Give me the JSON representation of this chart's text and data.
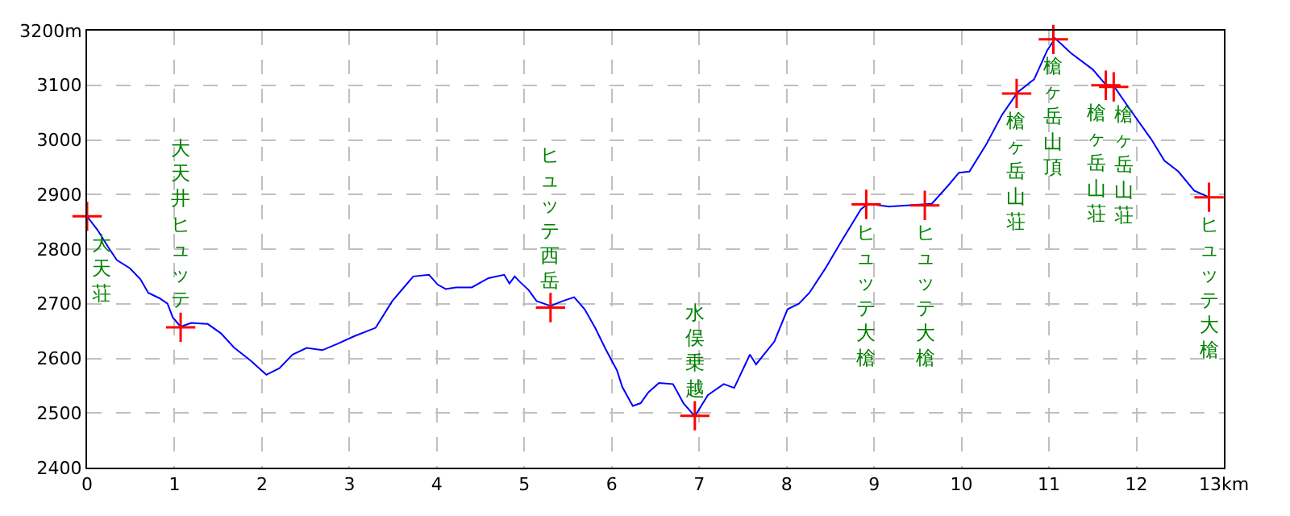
{
  "chart_data": {
    "type": "line",
    "x": [
      0,
      0.12,
      0.24,
      0.34,
      0.49,
      0.61,
      0.7,
      0.83,
      0.92,
      0.98,
      1.07,
      1.19,
      1.38,
      1.53,
      1.68,
      1.87,
      2.05,
      2.2,
      2.35,
      2.51,
      2.69,
      2.87,
      3.06,
      3.3,
      3.49,
      3.73,
      3.91,
      4.01,
      4.1,
      4.22,
      4.4,
      4.59,
      4.77,
      4.83,
      4.89,
      4.95,
      5.05,
      5.14,
      5.3,
      5.44,
      5.57,
      5.69,
      5.81,
      5.93,
      6.06,
      6.12,
      6.24,
      6.33,
      6.42,
      6.54,
      6.7,
      6.82,
      6.95,
      7.1,
      7.28,
      7.4,
      7.58,
      7.65,
      7.86,
      8.01,
      8.14,
      8.26,
      8.44,
      8.64,
      8.85,
      8.93,
      9.17,
      9.66,
      9.85,
      9.97,
      10.09,
      10.28,
      10.46,
      10.64,
      10.83,
      10.98,
      11.07,
      11.25,
      11.5,
      11.65,
      11.74,
      11.93,
      12.17,
      12.32,
      12.48,
      12.66,
      12.83
    ],
    "series": [
      {
        "color": "#0000ff",
        "marker": "none",
        "values": [
          2860,
          2835,
          2804,
          2780,
          2765,
          2745,
          2720,
          2710,
          2700,
          2675,
          2658,
          2665,
          2663,
          2646,
          2620,
          2596,
          2570,
          2582,
          2607,
          2619,
          2615,
          2627,
          2641,
          2656,
          2705,
          2750,
          2753,
          2735,
          2727,
          2730,
          2730,
          2747,
          2753,
          2737,
          2750,
          2740,
          2725,
          2705,
          2696,
          2705,
          2712,
          2690,
          2656,
          2617,
          2578,
          2548,
          2513,
          2518,
          2538,
          2555,
          2553,
          2518,
          2494,
          2533,
          2553,
          2546,
          2607,
          2589,
          2631,
          2690,
          2700,
          2720,
          2764,
          2818,
          2873,
          2883,
          2878,
          2883,
          2917,
          2940,
          2942,
          2991,
          3045,
          3087,
          3111,
          3164,
          3186,
          3159,
          3129,
          3101,
          3099,
          3055,
          3001,
          2962,
          2942,
          2907,
          2895
        ]
      },
      {
        "type": "scatter",
        "color": "#ff0000",
        "marker": "cross",
        "x": [
          0,
          1.07,
          5.3,
          6.95,
          8.91,
          9.58,
          10.63,
          11.05,
          11.65,
          11.74,
          12.83
        ],
        "values": [
          2860,
          2657,
          2693,
          2495,
          2882,
          2880,
          3085,
          3184,
          3100,
          3097,
          2895
        ]
      }
    ],
    "annotations": [
      {
        "text": "大天荘",
        "x": 0,
        "y": 2860
      },
      {
        "text": "大天井ヒュッテ",
        "x": 1.07,
        "y": 2657
      },
      {
        "text": "ヒュッテ西岳",
        "x": 5.3,
        "y": 2693
      },
      {
        "text": "水俣乗越",
        "x": 6.95,
        "y": 2495
      },
      {
        "text": "ヒュッテ大槍",
        "x": 8.91,
        "y": 2882
      },
      {
        "text": "ヒュッテ大槍",
        "x": 9.58,
        "y": 2880
      },
      {
        "text": "槍ヶ岳山荘",
        "x": 10.63,
        "y": 3085
      },
      {
        "text": "槍ヶ岳山頂",
        "x": 11.05,
        "y": 3184
      },
      {
        "text": "槍ヶ岳山荘",
        "x": 11.65,
        "y": 3100
      },
      {
        "text": "槍ヶ岳山荘",
        "x": 11.74,
        "y": 3097
      },
      {
        "text": "ヒュッテ大槍",
        "x": 12.83,
        "y": 2895
      }
    ],
    "xlim": [
      0,
      13
    ],
    "xticks": [
      0,
      1,
      2,
      3,
      4,
      5,
      6,
      7,
      8,
      9,
      10,
      11,
      12,
      {
        "value": 13,
        "label": "13km"
      }
    ],
    "ylim": [
      2400,
      3200
    ],
    "yticks": [
      2400,
      2500,
      2600,
      2700,
      2800,
      2900,
      3000,
      3100,
      {
        "value": 3200,
        "label": "3200m"
      }
    ],
    "grid": true
  }
}
